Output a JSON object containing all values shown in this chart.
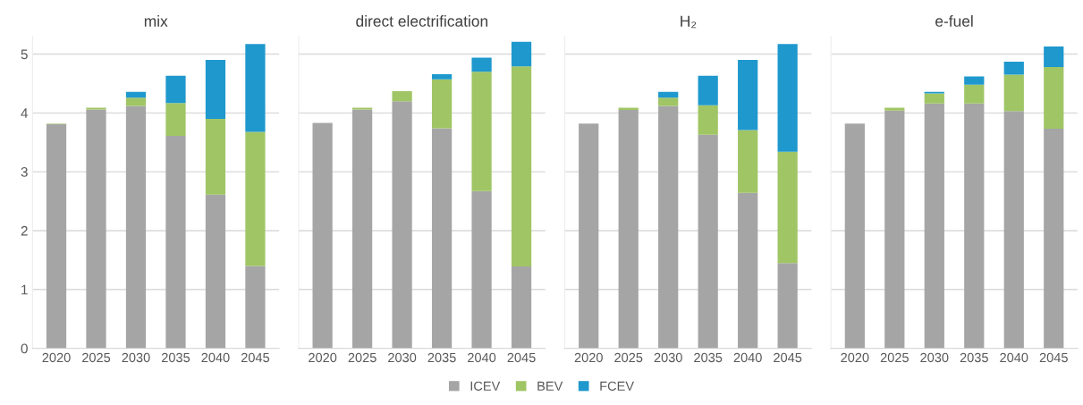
{
  "chart_data": [
    {
      "type": "bar",
      "title": "mix",
      "stacked": true,
      "categories": [
        "2020",
        "2025",
        "2030",
        "2035",
        "2040",
        "2045"
      ],
      "ylim": [
        0,
        5.3
      ],
      "yticks": [
        0,
        1,
        2,
        3,
        4,
        5
      ],
      "grid": "y",
      "legend": "bottom",
      "series": [
        {
          "name": "ICEV",
          "color": "#a5a5a5",
          "values": [
            3.81,
            4.06,
            4.12,
            3.61,
            2.61,
            1.4
          ]
        },
        {
          "name": "BEV",
          "color": "#a0c565",
          "values": [
            0.01,
            0.03,
            0.14,
            0.56,
            1.29,
            2.28
          ]
        },
        {
          "name": "FCEV",
          "color": "#1f98cd",
          "values": [
            null,
            null,
            0.1,
            0.46,
            1.0,
            1.49
          ]
        }
      ]
    },
    {
      "type": "bar",
      "title": "direct electrification",
      "stacked": true,
      "categories": [
        "2020",
        "2025",
        "2030",
        "2035",
        "2040",
        "2045"
      ],
      "ylim": [
        0,
        5.3
      ],
      "yticks": [
        0,
        1,
        2,
        3,
        4,
        5
      ],
      "grid": "y",
      "tick_labels": "x",
      "series": [
        {
          "color": "#a5a5a5",
          "values": [
            3.83,
            4.06,
            4.2,
            3.74,
            2.67,
            1.39
          ]
        },
        {
          "color": "#a0c565",
          "values": [
            null,
            0.03,
            0.17,
            0.83,
            2.03,
            3.4
          ]
        },
        {
          "color": "#1f98cd",
          "values": [
            null,
            null,
            null,
            0.09,
            0.24,
            0.42
          ]
        }
      ]
    },
    {
      "type": "bar",
      "title": "H₂",
      "stacked": true,
      "categories": [
        "2020",
        "2025",
        "2030",
        "2035",
        "2040",
        "2045"
      ],
      "ylim": [
        0,
        5.3
      ],
      "yticks": [
        0,
        1,
        2,
        3,
        4,
        5
      ],
      "grid": "y",
      "tick_labels": "x",
      "series": [
        {
          "color": "#a5a5a5",
          "values": [
            3.82,
            4.05,
            4.12,
            3.63,
            2.64,
            1.45
          ]
        },
        {
          "color": "#a0c565",
          "values": [
            null,
            0.04,
            0.14,
            0.5,
            1.07,
            1.89
          ]
        },
        {
          "color": "#1f98cd",
          "values": [
            null,
            null,
            0.1,
            0.5,
            1.19,
            1.83
          ]
        }
      ]
    },
    {
      "type": "bar",
      "title": "e-fuel",
      "stacked": true,
      "categories": [
        "2020",
        "2025",
        "2030",
        "2035",
        "2040",
        "2045"
      ],
      "ylim": [
        0,
        5.3
      ],
      "yticks": [
        0,
        1,
        2,
        3,
        4,
        5
      ],
      "grid": "y",
      "tick_labels": "x",
      "series": [
        {
          "color": "#a5a5a5",
          "values": [
            3.82,
            4.04,
            4.16,
            4.16,
            4.03,
            3.73
          ]
        },
        {
          "color": "#a0c565",
          "values": [
            null,
            0.05,
            0.17,
            0.32,
            0.62,
            1.05
          ]
        },
        {
          "color": "#1f98cd",
          "values": [
            null,
            null,
            0.03,
            0.14,
            0.22,
            0.35
          ]
        }
      ]
    }
  ]
}
